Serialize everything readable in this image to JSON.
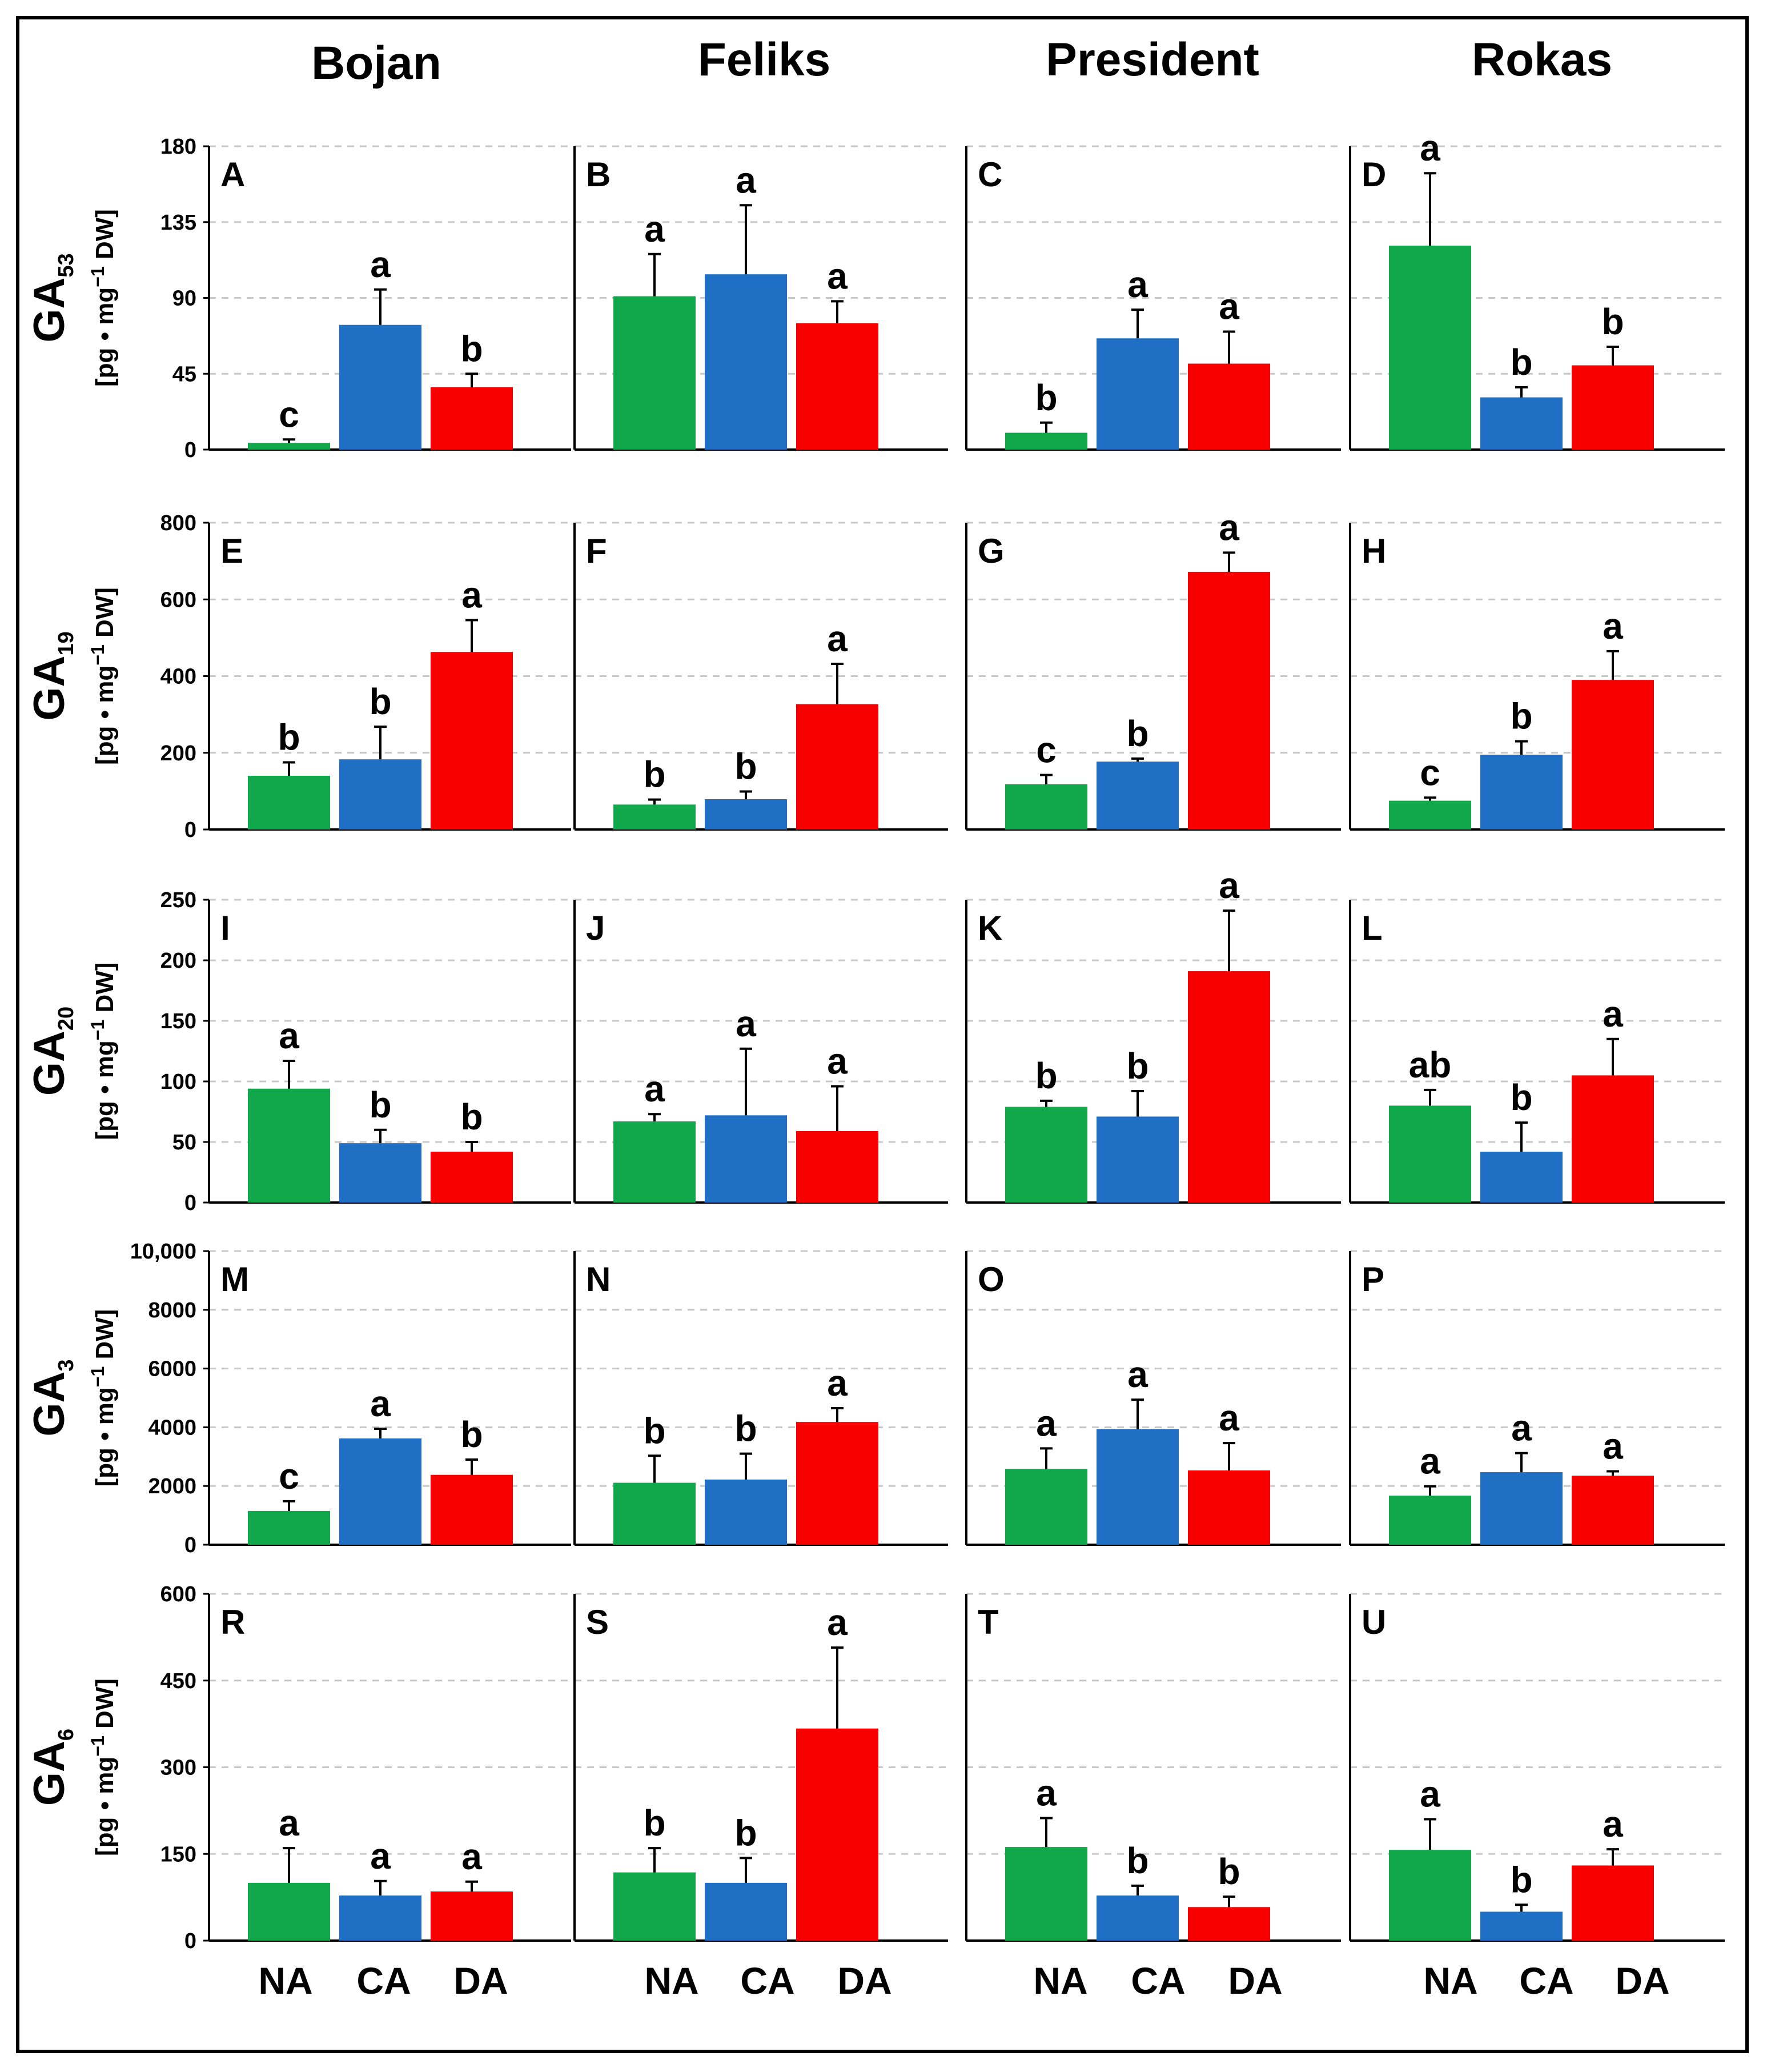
{
  "figure": {
    "columns": [
      "Bojan",
      "Feliks",
      "President",
      "Rokas"
    ],
    "categories": [
      "NA",
      "CA",
      "DA"
    ],
    "unit_text": "[pg • mg",
    "unit_sup": "−1",
    "unit_tail": " DW]",
    "colors": {
      "NA": "#11a84b",
      "CA": "#1f6fc5",
      "DA": "#f60000"
    }
  },
  "chart_data": [
    {
      "type": "bar",
      "panel": "A",
      "column": "Bojan",
      "hormone": "GA",
      "hormone_sub": "53",
      "ylim": [
        0,
        180
      ],
      "yticks": [
        "0",
        "45",
        "90",
        "135",
        "180"
      ],
      "categories": [
        "NA",
        "CA",
        "DA"
      ],
      "values": [
        4,
        74,
        37
      ],
      "errors": [
        2,
        21,
        8
      ],
      "significance": [
        "c",
        "a",
        "b"
      ]
    },
    {
      "type": "bar",
      "panel": "B",
      "column": "Feliks",
      "hormone": "GA",
      "hormone_sub": "53",
      "ylim": [
        0,
        180
      ],
      "yticks": [],
      "categories": [
        "NA",
        "CA",
        "DA"
      ],
      "values": [
        91,
        104,
        75
      ],
      "errors": [
        25,
        41,
        13
      ],
      "significance": [
        "a",
        "a",
        "a"
      ]
    },
    {
      "type": "bar",
      "panel": "C",
      "column": "President",
      "hormone": "GA",
      "hormone_sub": "53",
      "ylim": [
        0,
        180
      ],
      "yticks": [],
      "categories": [
        "NA",
        "CA",
        "DA"
      ],
      "values": [
        10,
        66,
        51
      ],
      "errors": [
        6,
        17,
        19
      ],
      "significance": [
        "b",
        "a",
        "a"
      ]
    },
    {
      "type": "bar",
      "panel": "D",
      "column": "Rokas",
      "hormone": "GA",
      "hormone_sub": "53",
      "ylim": [
        0,
        180
      ],
      "yticks": [],
      "categories": [
        "NA",
        "CA",
        "DA"
      ],
      "values": [
        121,
        31,
        50
      ],
      "errors": [
        43,
        6,
        11
      ],
      "significance": [
        "a",
        "b",
        "b"
      ]
    },
    {
      "type": "bar",
      "panel": "E",
      "column": "Bojan",
      "hormone": "GA",
      "hormone_sub": "19",
      "ylim": [
        0,
        800
      ],
      "yticks": [
        "0",
        "200",
        "400",
        "600",
        "800"
      ],
      "categories": [
        "NA",
        "CA",
        "DA"
      ],
      "values": [
        140,
        183,
        463
      ],
      "errors": [
        35,
        85,
        83
      ],
      "significance": [
        "b",
        "b",
        "a"
      ]
    },
    {
      "type": "bar",
      "panel": "F",
      "column": "Feliks",
      "hormone": "GA",
      "hormone_sub": "19",
      "ylim": [
        0,
        800
      ],
      "yticks": [],
      "categories": [
        "NA",
        "CA",
        "DA"
      ],
      "values": [
        65,
        79,
        327
      ],
      "errors": [
        13,
        20,
        105
      ],
      "significance": [
        "b",
        "b",
        "a"
      ]
    },
    {
      "type": "bar",
      "panel": "G",
      "column": "President",
      "hormone": "GA",
      "hormone_sub": "19",
      "ylim": [
        0,
        800
      ],
      "yticks": [],
      "categories": [
        "NA",
        "CA",
        "DA"
      ],
      "values": [
        118,
        177,
        672
      ],
      "errors": [
        24,
        8,
        50
      ],
      "significance": [
        "c",
        "b",
        "a"
      ]
    },
    {
      "type": "bar",
      "panel": "H",
      "column": "Rokas",
      "hormone": "GA",
      "hormone_sub": "19",
      "ylim": [
        0,
        800
      ],
      "yticks": [],
      "categories": [
        "NA",
        "CA",
        "DA"
      ],
      "values": [
        75,
        195,
        390
      ],
      "errors": [
        8,
        35,
        75
      ],
      "significance": [
        "c",
        "b",
        "a"
      ]
    },
    {
      "type": "bar",
      "panel": "I",
      "column": "Bojan",
      "hormone": "GA",
      "hormone_sub": "20",
      "ylim": [
        0,
        250
      ],
      "yticks": [
        "0",
        "50",
        "100",
        "150",
        "200",
        "250"
      ],
      "categories": [
        "NA",
        "CA",
        "DA"
      ],
      "values": [
        94,
        49,
        42
      ],
      "errors": [
        23,
        11,
        8
      ],
      "significance": [
        "a",
        "b",
        "b"
      ]
    },
    {
      "type": "bar",
      "panel": "J",
      "column": "Feliks",
      "hormone": "GA",
      "hormone_sub": "20",
      "ylim": [
        0,
        250
      ],
      "yticks": [],
      "categories": [
        "NA",
        "CA",
        "DA"
      ],
      "values": [
        67,
        72,
        59
      ],
      "errors": [
        6,
        55,
        37
      ],
      "significance": [
        "a",
        "a",
        "a"
      ]
    },
    {
      "type": "bar",
      "panel": "K",
      "column": "President",
      "hormone": "GA",
      "hormone_sub": "20",
      "ylim": [
        0,
        250
      ],
      "yticks": [],
      "categories": [
        "NA",
        "CA",
        "DA"
      ],
      "values": [
        79,
        71,
        191
      ],
      "errors": [
        5,
        21,
        50
      ],
      "significance": [
        "b",
        "b",
        "a"
      ]
    },
    {
      "type": "bar",
      "panel": "L",
      "column": "Rokas",
      "hormone": "GA",
      "hormone_sub": "20",
      "ylim": [
        0,
        250
      ],
      "yticks": [],
      "categories": [
        "NA",
        "CA",
        "DA"
      ],
      "values": [
        80,
        42,
        105
      ],
      "errors": [
        13,
        24,
        30
      ],
      "significance": [
        "ab",
        "b",
        "a"
      ]
    },
    {
      "type": "bar",
      "panel": "M",
      "column": "Bojan",
      "hormone": "GA",
      "hormone_sub": "3",
      "ylim": [
        0,
        10000
      ],
      "yticks": [
        "0",
        "2000",
        "4000",
        "6000",
        "8000",
        "10,000"
      ],
      "categories": [
        "NA",
        "CA",
        "DA"
      ],
      "values": [
        1150,
        3620,
        2380
      ],
      "errors": [
        330,
        330,
        520
      ],
      "significance": [
        "c",
        "a",
        "b"
      ]
    },
    {
      "type": "bar",
      "panel": "N",
      "column": "Feliks",
      "hormone": "GA",
      "hormone_sub": "3",
      "ylim": [
        0,
        10000
      ],
      "yticks": [],
      "categories": [
        "NA",
        "CA",
        "DA"
      ],
      "values": [
        2110,
        2220,
        4180
      ],
      "errors": [
        920,
        880,
        470
      ],
      "significance": [
        "b",
        "b",
        "a"
      ]
    },
    {
      "type": "bar",
      "panel": "O",
      "column": "President",
      "hormone": "GA",
      "hormone_sub": "3",
      "ylim": [
        0,
        10000
      ],
      "yticks": [],
      "categories": [
        "NA",
        "CA",
        "DA"
      ],
      "values": [
        2580,
        3940,
        2530
      ],
      "errors": [
        700,
        1000,
        930
      ],
      "significance": [
        "a",
        "a",
        "a"
      ]
    },
    {
      "type": "bar",
      "panel": "P",
      "column": "Rokas",
      "hormone": "GA",
      "hormone_sub": "3",
      "ylim": [
        0,
        10000
      ],
      "yticks": [],
      "categories": [
        "NA",
        "CA",
        "DA"
      ],
      "values": [
        1670,
        2470,
        2350
      ],
      "errors": [
        320,
        650,
        150
      ],
      "significance": [
        "a",
        "a",
        "a"
      ]
    },
    {
      "type": "bar",
      "panel": "R",
      "column": "Bojan",
      "hormone": "GA",
      "hormone_sub": "6",
      "ylim": [
        0,
        600
      ],
      "yticks": [
        "0",
        "150",
        "300",
        "450",
        "600"
      ],
      "categories": [
        "NA",
        "CA",
        "DA"
      ],
      "values": [
        100,
        78,
        85
      ],
      "errors": [
        60,
        25,
        17
      ],
      "significance": [
        "a",
        "a",
        "a"
      ]
    },
    {
      "type": "bar",
      "panel": "S",
      "column": "Feliks",
      "hormone": "GA",
      "hormone_sub": "6",
      "ylim": [
        0,
        600
      ],
      "yticks": [],
      "categories": [
        "NA",
        "CA",
        "DA"
      ],
      "values": [
        118,
        100,
        367
      ],
      "errors": [
        42,
        43,
        140
      ],
      "significance": [
        "b",
        "b",
        "a"
      ]
    },
    {
      "type": "bar",
      "panel": "T",
      "column": "President",
      "hormone": "GA",
      "hormone_sub": "6",
      "ylim": [
        0,
        600
      ],
      "yticks": [],
      "categories": [
        "NA",
        "CA",
        "DA"
      ],
      "values": [
        162,
        78,
        58
      ],
      "errors": [
        50,
        17,
        18
      ],
      "significance": [
        "a",
        "b",
        "b"
      ]
    },
    {
      "type": "bar",
      "panel": "U",
      "column": "Rokas",
      "hormone": "GA",
      "hormone_sub": "6",
      "ylim": [
        0,
        600
      ],
      "yticks": [],
      "categories": [
        "NA",
        "CA",
        "DA"
      ],
      "values": [
        157,
        50,
        130
      ],
      "errors": [
        53,
        12,
        28
      ],
      "significance": [
        "a",
        "b",
        "a"
      ]
    }
  ]
}
